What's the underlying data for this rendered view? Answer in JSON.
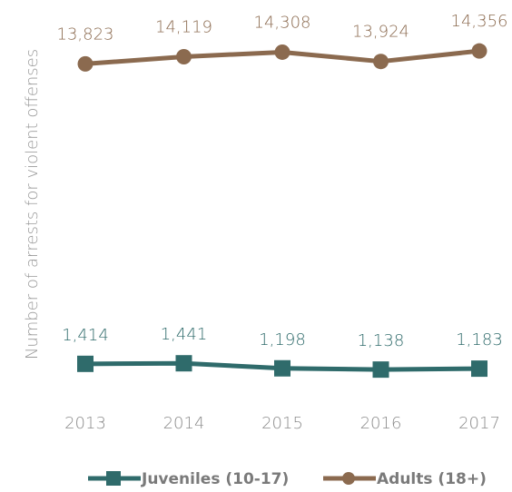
{
  "chart_data": {
    "type": "line",
    "x": [
      "2013",
      "2014",
      "2015",
      "2016",
      "2017"
    ],
    "ylabel": "Number of arrests for violent offenses",
    "ylim": [
      0,
      15000
    ],
    "grid": false,
    "legend": "bottom",
    "series": [
      {
        "name": "Juveniles (10-17)",
        "values": [
          1414,
          1441,
          1198,
          1138,
          1183
        ],
        "labels": [
          "1,414",
          "1,441",
          "1,198",
          "1,138",
          "1,183"
        ],
        "color": "#2f6b6b",
        "marker": "square"
      },
      {
        "name": "Adults (18+)",
        "values": [
          13823,
          14119,
          14308,
          13924,
          14356
        ],
        "labels": [
          "13,823",
          "14,119",
          "14,308",
          "13,924",
          "14,356"
        ],
        "color": "#8b6a4f",
        "marker": "circle"
      }
    ]
  }
}
